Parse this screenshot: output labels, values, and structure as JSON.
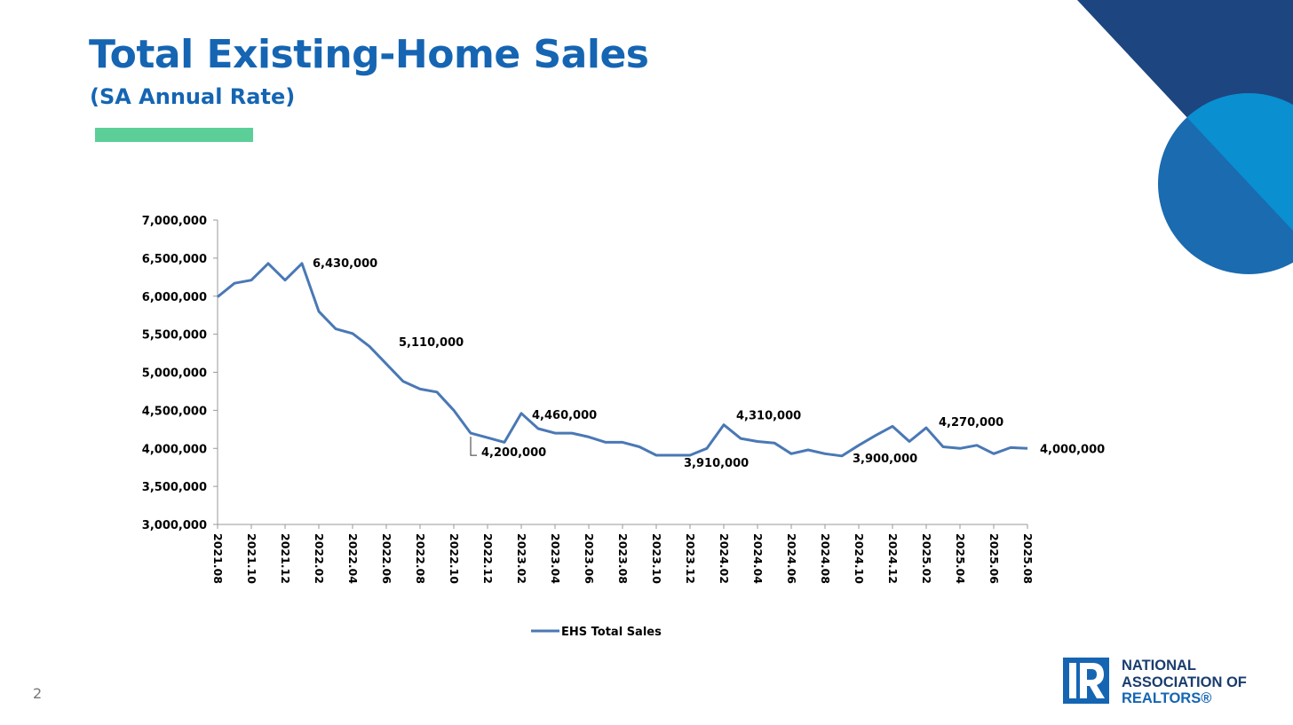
{
  "slide": {
    "title": "Total Existing-Home Sales",
    "subtitle": "(SA Annual Rate)",
    "page_number": "2",
    "accent_color": "#5ccf98",
    "title_color": "#1565b3"
  },
  "logo": {
    "line1": "NATIONAL",
    "line2": "ASSOCIATION OF",
    "line3": "REALTORS®",
    "icon": "realtor-r-logo-icon",
    "color": "#1565b3"
  },
  "decor": {
    "triangle_color": "#1d4580",
    "circle_color_dark": "#1a6bb0",
    "circle_color_light": "#0a8fd0"
  },
  "chart_data": {
    "type": "line",
    "title": "",
    "xlabel": "",
    "ylabel": "",
    "ylim": [
      3000000,
      7000000
    ],
    "yticks": [
      "7,000,000",
      "6,500,000",
      "6,000,000",
      "5,500,000",
      "5,000,000",
      "4,500,000",
      "4,000,000",
      "3,500,000",
      "3,000,000"
    ],
    "ytick_values": [
      7000000,
      6500000,
      6000000,
      5500000,
      5000000,
      4500000,
      4000000,
      3500000,
      3000000
    ],
    "grid": false,
    "legend_position": "bottom",
    "x": [
      "2021.08",
      "2021.09",
      "2021.10",
      "2021.11",
      "2021.12",
      "2022.01",
      "2022.02",
      "2022.03",
      "2022.04",
      "2022.05",
      "2022.06",
      "2022.07",
      "2022.08",
      "2022.09",
      "2022.10",
      "2022.11",
      "2022.12",
      "2023.01",
      "2023.02",
      "2023.03",
      "2023.04",
      "2023.05",
      "2023.06",
      "2023.07",
      "2023.08",
      "2023.09",
      "2023.10",
      "2023.11",
      "2023.12",
      "2024.01",
      "2024.02",
      "2024.03",
      "2024.04",
      "2024.05",
      "2024.06",
      "2024.07",
      "2024.08",
      "2024.09",
      "2024.10",
      "2024.11",
      "2024.12",
      "2025.01",
      "2025.02",
      "2025.03",
      "2025.04",
      "2025.05",
      "2025.06",
      "2025.07",
      "2025.08"
    ],
    "xtick_labels": [
      "2021.08",
      "2021.10",
      "2021.12",
      "2022.02",
      "2022.04",
      "2022.06",
      "2022.08",
      "2022.10",
      "2022.12",
      "2023.02",
      "2023.04",
      "2023.06",
      "2023.08",
      "2023.10",
      "2023.12",
      "2024.02",
      "2024.04",
      "2024.06",
      "2024.08",
      "2024.10",
      "2024.12",
      "2025.02",
      "2025.04",
      "2025.06",
      "2025.08"
    ],
    "series": [
      {
        "name": "EHS Total Sales",
        "color": "#4a78b5",
        "values": [
          5990000,
          6170000,
          6210000,
          6430000,
          6210000,
          6430000,
          5800000,
          5570000,
          5510000,
          5340000,
          5110000,
          4880000,
          4780000,
          4740000,
          4500000,
          4200000,
          4140000,
          4080000,
          4460000,
          4260000,
          4200000,
          4200000,
          4150000,
          4080000,
          4080000,
          4020000,
          3910000,
          3910000,
          3910000,
          4000000,
          4310000,
          4130000,
          4090000,
          4070000,
          3930000,
          3980000,
          3930000,
          3900000,
          4040000,
          4170000,
          4290000,
          4090000,
          4270000,
          4020000,
          4000000,
          4040000,
          3930000,
          4010000,
          4000000
        ]
      }
    ],
    "data_labels": [
      {
        "index": 5,
        "text": "6,430,000"
      },
      {
        "index": 10,
        "text": "5,110,000"
      },
      {
        "index": 15,
        "text": "4,200,000"
      },
      {
        "index": 18,
        "text": "4,460,000"
      },
      {
        "index": 27,
        "text": "3,910,000"
      },
      {
        "index": 30,
        "text": "4,310,000"
      },
      {
        "index": 37,
        "text": "3,900,000"
      },
      {
        "index": 42,
        "text": "4,270,000"
      },
      {
        "index": 48,
        "text": "4,000,000"
      }
    ]
  }
}
